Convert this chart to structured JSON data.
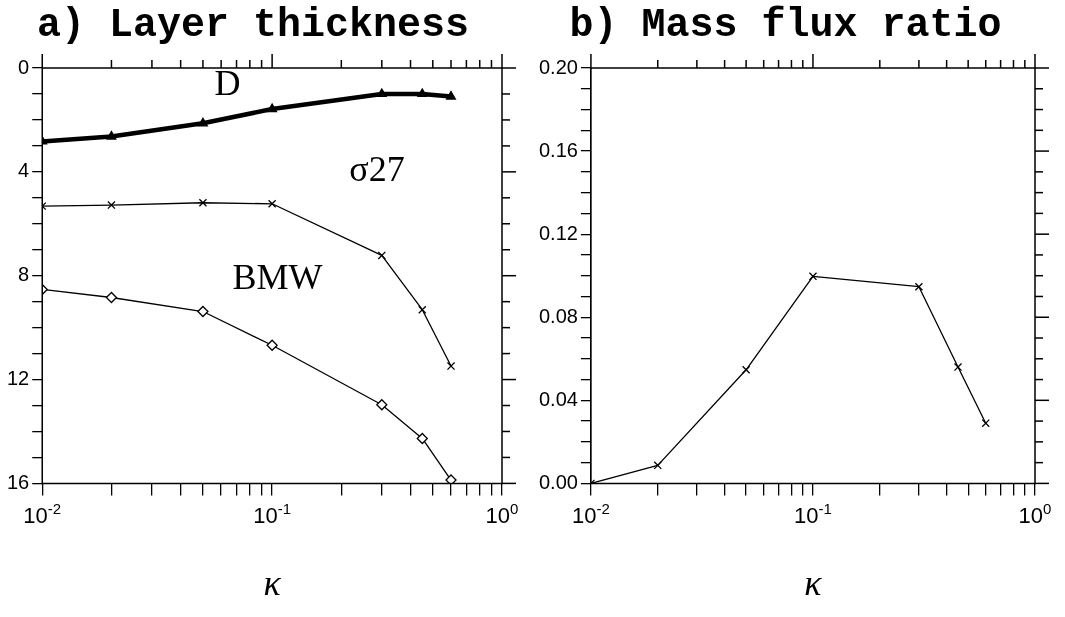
{
  "chart_data": [
    {
      "type": "line",
      "title": "a) Layer thickness",
      "xlabel": "κ",
      "x": [
        0.01,
        0.02,
        0.05,
        0.1,
        0.3,
        0.45,
        0.6
      ],
      "series": [
        {
          "name": "D",
          "color": "#000000",
          "marker": "triangle",
          "values": [
            2.83,
            2.64,
            2.13,
            1.58,
            1.0,
            1.0,
            1.1
          ]
        },
        {
          "name": "σ27",
          "color": "#000000",
          "marker": "cross",
          "values": [
            5.32,
            5.28,
            5.19,
            5.23,
            7.22,
            9.31,
            11.48
          ]
        },
        {
          "name": "BMW",
          "color": "#000000",
          "marker": "diamond",
          "values": [
            8.53,
            8.84,
            9.38,
            10.68,
            12.97,
            14.27,
            15.87
          ]
        }
      ],
      "log": "x",
      "xlim": [
        0.01,
        1
      ],
      "xticks": [
        {
          "value": 0.01,
          "label": "10$^{-2}$"
        },
        {
          "value": 0.02,
          "label": null
        },
        {
          "value": 0.03,
          "label": null
        },
        {
          "value": 0.04,
          "label": null
        },
        {
          "value": 0.05,
          "label": null
        },
        {
          "value": 0.06,
          "label": null
        },
        {
          "value": 0.07,
          "label": null
        },
        {
          "value": 0.08,
          "label": null
        },
        {
          "value": 0.09,
          "label": null
        },
        {
          "value": 0.1,
          "label": "10$^{-1}$"
        },
        {
          "value": 0.2,
          "label": null
        },
        {
          "value": 0.3,
          "label": null
        },
        {
          "value": 0.4,
          "label": null
        },
        {
          "value": 0.5,
          "label": null
        },
        {
          "value": 0.6,
          "label": null
        },
        {
          "value": 0.7,
          "label": null
        },
        {
          "value": 0.8,
          "label": null
        },
        {
          "value": 0.9,
          "label": null
        },
        {
          "value": 1,
          "label": "10$^{0}$"
        }
      ],
      "ylim": [
        16,
        0
      ],
      "yticks": [
        0,
        {
          "value": 1,
          "label": null
        },
        {
          "value": 2,
          "label": null
        },
        {
          "value": 3,
          "label": null
        },
        4,
        {
          "value": 5,
          "label": null
        },
        {
          "value": 6,
          "label": null
        },
        {
          "value": 7,
          "label": null
        },
        8,
        {
          "value": 9,
          "label": null
        },
        {
          "value": 10,
          "label": null
        },
        {
          "value": 11,
          "label": null
        },
        12,
        {
          "value": 13,
          "label": null
        },
        {
          "value": 14,
          "label": null
        },
        {
          "value": 15,
          "label": null
        },
        16
      ],
      "grid": false
    },
    {
      "type": "line",
      "title": "b) Mass flux ratio",
      "xlabel": "κ",
      "x": [
        0.01,
        0.02,
        0.05,
        0.1,
        0.3,
        0.45,
        0.6
      ],
      "series": [
        {
          "color": "#000000",
          "marker": "cross",
          "values": [
            0.0,
            0.0087,
            0.0547,
            0.0997,
            0.0947,
            0.056,
            0.029
          ]
        }
      ],
      "log": "x",
      "xlim": [
        0.01,
        1
      ],
      "xticks": [
        {
          "value": 0.01,
          "label": "10$^{-2}$"
        },
        {
          "value": 0.02,
          "label": null
        },
        {
          "value": 0.03,
          "label": null
        },
        {
          "value": 0.04,
          "label": null
        },
        {
          "value": 0.05,
          "label": null
        },
        {
          "value": 0.06,
          "label": null
        },
        {
          "value": 0.07,
          "label": null
        },
        {
          "value": 0.08,
          "label": null
        },
        {
          "value": 0.09,
          "label": null
        },
        {
          "value": 0.1,
          "label": "10$^{-1}$"
        },
        {
          "value": 0.2,
          "label": null
        },
        {
          "value": 0.3,
          "label": null
        },
        {
          "value": 0.4,
          "label": null
        },
        {
          "value": 0.5,
          "label": null
        },
        {
          "value": 0.6,
          "label": null
        },
        {
          "value": 0.7,
          "label": null
        },
        {
          "value": 0.8,
          "label": null
        },
        {
          "value": 0.9,
          "label": null
        },
        {
          "value": 1,
          "label": "10$^{0}$"
        }
      ],
      "ylim": [
        0,
        0.2
      ],
      "yticks": [
        {
          "value": 0,
          "label": "0.00"
        },
        {
          "value": 0.01,
          "label": null
        },
        {
          "value": 0.02,
          "label": null
        },
        {
          "value": 0.03,
          "label": null
        },
        {
          "value": 0.04,
          "label": "0.04"
        },
        {
          "value": 0.05,
          "label": null
        },
        {
          "value": 0.06,
          "label": null
        },
        {
          "value": 0.07,
          "label": null
        },
        {
          "value": 0.08,
          "label": "0.08"
        },
        {
          "value": 0.09,
          "label": null
        },
        {
          "value": 0.1,
          "label": null
        },
        {
          "value": 0.11,
          "label": null
        },
        {
          "value": 0.12,
          "label": "0.12"
        },
        {
          "value": 0.13,
          "label": null
        },
        {
          "value": 0.14,
          "label": null
        },
        {
          "value": 0.15,
          "label": null
        },
        {
          "value": 0.16,
          "label": "0.16"
        },
        {
          "value": 0.17,
          "label": null
        },
        {
          "value": 0.18,
          "label": null
        },
        {
          "value": 0.19,
          "label": null
        },
        {
          "value": 0.2,
          "label": "0.20"
        }
      ],
      "grid": false,
      "legend": false
    }
  ]
}
